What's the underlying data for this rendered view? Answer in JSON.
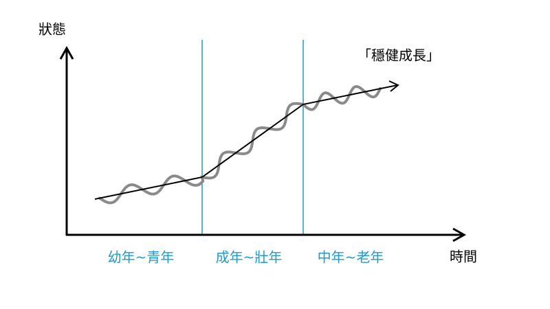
{
  "axes": {
    "y_label": "狀態",
    "x_label": "時間"
  },
  "annotation": "「穩健成長」",
  "stages": [
    "幼年~青年",
    "成年~壯年",
    "中年~老年"
  ]
}
